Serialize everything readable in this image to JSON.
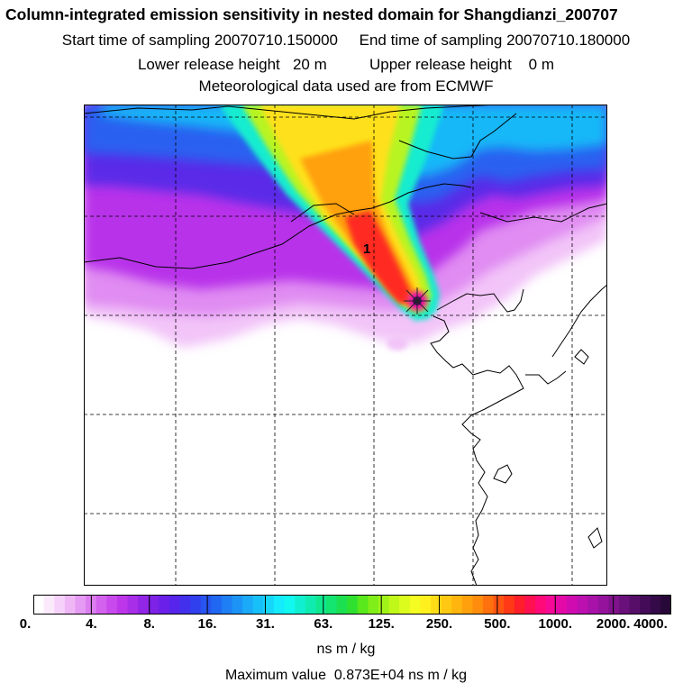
{
  "header": {
    "title": "Column-integrated emission sensitivity in nested domain for Shangdianzi_200707",
    "line2": "Start time of sampling 20070710.150000     End time of sampling 20070710.180000",
    "line3": "Lower release height   20 m          Upper release height    0 m",
    "line4": "Meteorological data used are from ECMWF"
  },
  "map": {
    "release_label": "1",
    "colors": {
      "background": "#ffffff",
      "coast": "#000000",
      "grid": "#000000"
    }
  },
  "colorbar": {
    "tick_labels": [
      "0.",
      "4.",
      "8.",
      "16.",
      "31.",
      "63.",
      "125.",
      "250.",
      "500.",
      "1000.",
      "2000.",
      "4000."
    ],
    "colors": [
      "#ffffff",
      "#fbeafc",
      "#f6d2fa",
      "#efb6f6",
      "#e59af3",
      "#dc7ef0",
      "#d362ee",
      "#c94aec",
      "#bd36ea",
      "#a82ee8",
      "#9326e6",
      "#7e22e6",
      "#6a20e8",
      "#5624ea",
      "#4230ec",
      "#3040ee",
      "#2854f0",
      "#2068f2",
      "#1e7ef4",
      "#1c94f6",
      "#1aaaf8",
      "#18c0fa",
      "#16d6fc",
      "#14ecfe",
      "#10f8f0",
      "#10f0d0",
      "#10ecb0",
      "#10e890",
      "#14e470",
      "#1ce050",
      "#30e030",
      "#58e81c",
      "#80ee18",
      "#a0f418",
      "#c0f81a",
      "#dcfc1e",
      "#f4fc22",
      "#fff01e",
      "#ffdc18",
      "#ffc812",
      "#ffb40e",
      "#ffa00c",
      "#ff8c0c",
      "#ff700e",
      "#ff5412",
      "#ff3816",
      "#ff1e2a",
      "#ff1050",
      "#ff0a78",
      "#f40a96",
      "#e40aa8",
      "#d00cb0",
      "#bc10b0",
      "#a812a8",
      "#94129c",
      "#80128c",
      "#6a107a",
      "#560e68",
      "#440c58",
      "#340a48",
      "#280838"
    ],
    "units": "ns m / kg"
  },
  "footer": {
    "max_value": "Maximum value  0.873E+04 ns m / kg"
  }
}
